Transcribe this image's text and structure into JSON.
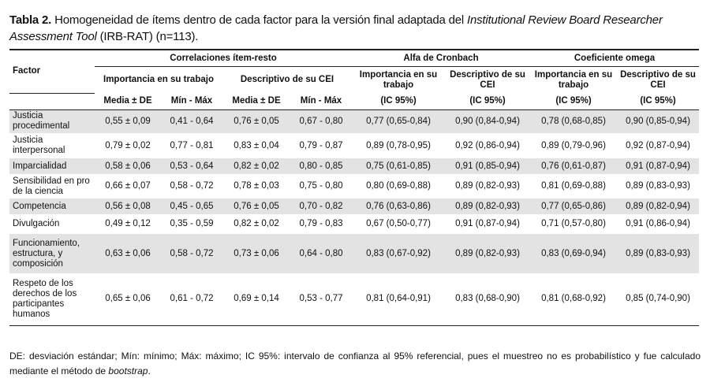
{
  "caption": {
    "label": "Tabla 2.",
    "text_a": " Homogeneidad de ítems dentro de cada factor para la versión final adaptada del ",
    "italic": "Institutional Review Board Researcher Assessment Tool",
    "text_b": " (IRB-RAT) (n=113)."
  },
  "header": {
    "factor": "Factor",
    "group_1": "Correlaciones ítem-resto",
    "group_2": "Alfa de Cronbach",
    "group_3": "Coeficiente omega",
    "sub_1": "Importancia en su trabajo",
    "sub_2": "Descriptivo de su CEI",
    "sub_3": "Importancia en su trabajo",
    "sub_4": "Descriptivo de su CEI",
    "sub_5": "Importancia en su trabajo",
    "sub_6": "Descriptivo de su CEI",
    "c1": "Media ± DE",
    "c2": "Mín - Máx",
    "c3": "Media ± DE",
    "c4": "Mín - Máx",
    "c5": "(IC 95%)",
    "c6": "(IC 95%)",
    "c7": "(IC 95%)",
    "c8": "(IC 95%)"
  },
  "rows": [
    {
      "factor": "Justicia procedimental",
      "v": [
        "0,55 ± 0,09",
        "0,41 - 0,64",
        "0,76 ± 0,05",
        "0,67 - 0,80",
        "0,77 (0,65-0,84)",
        "0,90 (0,84-0,94)",
        "0,78 (0,68-0,85)",
        "0,90 (0,85-0,94)"
      ]
    },
    {
      "factor": "Justicia interpersonal",
      "v": [
        "0,79 ± 0,02",
        "0,77 - 0,81",
        "0,83 ± 0,04",
        "0,79 - 0,87",
        "0,89 (0,78-0,95)",
        "0,92 (0,86-0,94)",
        "0,89 (0,79-0,96)",
        "0,92 (0,87-0,94)"
      ]
    },
    {
      "factor": "Imparcialidad",
      "v": [
        "0,58 ± 0,06",
        "0,53 - 0,64",
        "0,82 ± 0,02",
        "0,80 - 0,85",
        "0,75 (0,61-0,85)",
        "0,91 (0,85-0,94)",
        "0,76 (0,61-0,87)",
        "0,91 (0,87-0,94)"
      ]
    },
    {
      "factor": "Sensibilidad en pro de la ciencia",
      "v": [
        "0,66 ± 0,07",
        "0,58 - 0,72",
        "0,78 ± 0,03",
        "0,75 - 0,80",
        "0,80 (0,69-0,88)",
        "0,89 (0,82-0,93)",
        "0,81 (0,69-0,88)",
        "0,89 (0,83-0,93)"
      ]
    },
    {
      "factor": "Competencia",
      "v": [
        "0,56 ± 0,08",
        "0,45 - 0,65",
        "0,76 ± 0,05",
        "0,70 - 0,82",
        "0,76 (0,63-0,86)",
        "0,89 (0,82-0,93)",
        "0,77 (0,65-0,86)",
        "0,89 (0,82-0,94)"
      ]
    },
    {
      "factor": "Divulgación",
      "v": [
        "0,49 ± 0,12",
        "0,35 - 0,59",
        "0,82 ± 0,02",
        "0,79 - 0,83",
        "0,67 (0,50-0,77)",
        "0,91 (0,87-0,94)",
        "0,71 (0,57-0,80)",
        "0,91 (0,86-0,94)"
      ]
    },
    {
      "factor": "Funcionamiento, estructura, y composición",
      "v": [
        "0,63 ± 0,06",
        "0,58 - 0,72",
        "0,73 ± 0,06",
        "0,64 - 0,80",
        "0,83 (0,67-0,92)",
        "0,89 (0,82-0,93)",
        "0,83 (0,69-0,94)",
        "0,89 (0,83-0,93)"
      ]
    },
    {
      "factor": "Respeto de los derechos de los participantes humanos",
      "v": [
        "0,65 ± 0,06",
        "0,61 - 0,72",
        "0,69 ± 0,14",
        "0,53 - 0,77",
        "0,81 (0,64-0,91)",
        "0,83 (0,68-0,90)",
        "0,81 (0,68-0,92)",
        "0,85 (0,74-0,90)"
      ]
    }
  ],
  "note": {
    "text": "DE: desviación estándar; Mín: mínimo; Máx: máximo; IC 95%: intervalo de confianza al 95% referencial, pues el muestreo no es probabilístico y fue calculado mediante el método de ",
    "italic": "bootstrap",
    "end": "."
  }
}
